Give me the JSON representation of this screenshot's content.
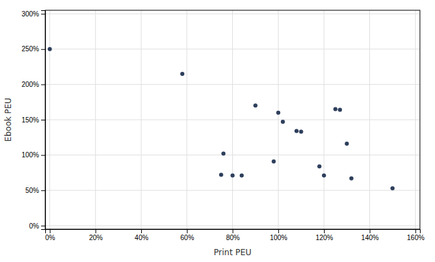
{
  "chart_data": {
    "type": "scatter",
    "x": [
      0.0,
      0.58,
      0.75,
      0.76,
      0.8,
      0.84,
      0.9,
      0.98,
      1.0,
      1.02,
      1.08,
      1.1,
      1.18,
      1.2,
      1.25,
      1.27,
      1.3,
      1.32,
      1.5
    ],
    "values": [
      2.5,
      2.15,
      0.72,
      1.02,
      0.71,
      0.71,
      1.7,
      0.91,
      1.6,
      1.47,
      1.34,
      1.33,
      0.84,
      0.71,
      1.65,
      1.64,
      1.16,
      0.67,
      0.53
    ],
    "color": "#2e3f5c",
    "xlabel": "Print PEU",
    "ylabel": "Ebook PEU",
    "xlim": [
      -0.02,
      1.62
    ],
    "ylim": [
      -0.05,
      3.05
    ],
    "xticks": [
      {
        "value": 0.0,
        "label": "0%"
      },
      {
        "value": 0.2,
        "label": "20%"
      },
      {
        "value": 0.4,
        "label": "40%"
      },
      {
        "value": 0.6,
        "label": "60%"
      },
      {
        "value": 0.8,
        "label": "80%"
      },
      {
        "value": 1.0,
        "label": "100%"
      },
      {
        "value": 1.2,
        "label": "120%"
      },
      {
        "value": 1.4,
        "label": "140%"
      },
      {
        "value": 1.6,
        "label": "160%"
      }
    ],
    "yticks": [
      {
        "value": 0.0,
        "label": "0%"
      },
      {
        "value": 0.5,
        "label": "50%"
      },
      {
        "value": 1.0,
        "label": "100%"
      },
      {
        "value": 1.5,
        "label": "150%"
      },
      {
        "value": 2.0,
        "label": "200%"
      },
      {
        "value": 2.5,
        "label": "250%"
      },
      {
        "value": 3.0,
        "label": "300%"
      }
    ],
    "grid": true
  }
}
